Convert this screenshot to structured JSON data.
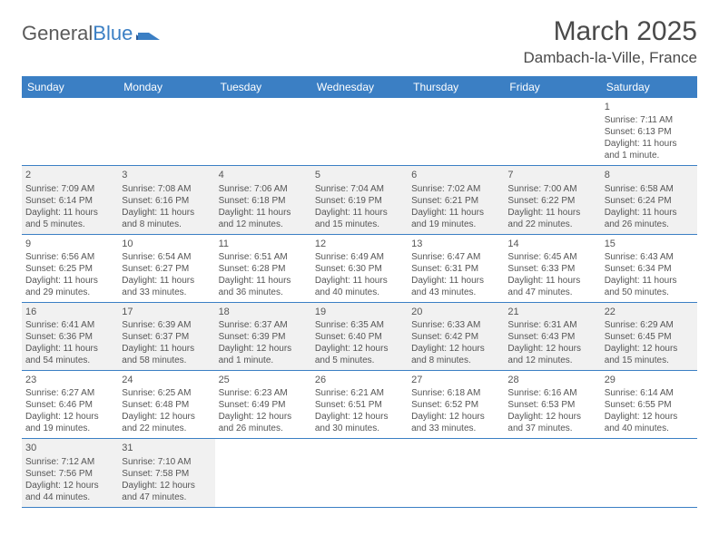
{
  "logo": {
    "text1": "General",
    "text2": "Blue"
  },
  "title": "March 2025",
  "location": "Dambach-la-Ville, France",
  "colors": {
    "header_bg": "#3b7fc4",
    "header_text": "#ffffff",
    "cell_text": "#555555",
    "shaded_bg": "#f1f1f1",
    "page_bg": "#ffffff",
    "border": "#3b7fc4"
  },
  "day_headers": [
    "Sunday",
    "Monday",
    "Tuesday",
    "Wednesday",
    "Thursday",
    "Friday",
    "Saturday"
  ],
  "weeks": [
    [
      {
        "num": "",
        "sunrise": "",
        "sunset": "",
        "daylight": "",
        "shaded": false
      },
      {
        "num": "",
        "sunrise": "",
        "sunset": "",
        "daylight": "",
        "shaded": false
      },
      {
        "num": "",
        "sunrise": "",
        "sunset": "",
        "daylight": "",
        "shaded": false
      },
      {
        "num": "",
        "sunrise": "",
        "sunset": "",
        "daylight": "",
        "shaded": false
      },
      {
        "num": "",
        "sunrise": "",
        "sunset": "",
        "daylight": "",
        "shaded": false
      },
      {
        "num": "",
        "sunrise": "",
        "sunset": "",
        "daylight": "",
        "shaded": false
      },
      {
        "num": "1",
        "sunrise": "Sunrise: 7:11 AM",
        "sunset": "Sunset: 6:13 PM",
        "daylight": "Daylight: 11 hours and 1 minute.",
        "shaded": false
      }
    ],
    [
      {
        "num": "2",
        "sunrise": "Sunrise: 7:09 AM",
        "sunset": "Sunset: 6:14 PM",
        "daylight": "Daylight: 11 hours and 5 minutes.",
        "shaded": true
      },
      {
        "num": "3",
        "sunrise": "Sunrise: 7:08 AM",
        "sunset": "Sunset: 6:16 PM",
        "daylight": "Daylight: 11 hours and 8 minutes.",
        "shaded": true
      },
      {
        "num": "4",
        "sunrise": "Sunrise: 7:06 AM",
        "sunset": "Sunset: 6:18 PM",
        "daylight": "Daylight: 11 hours and 12 minutes.",
        "shaded": true
      },
      {
        "num": "5",
        "sunrise": "Sunrise: 7:04 AM",
        "sunset": "Sunset: 6:19 PM",
        "daylight": "Daylight: 11 hours and 15 minutes.",
        "shaded": true
      },
      {
        "num": "6",
        "sunrise": "Sunrise: 7:02 AM",
        "sunset": "Sunset: 6:21 PM",
        "daylight": "Daylight: 11 hours and 19 minutes.",
        "shaded": true
      },
      {
        "num": "7",
        "sunrise": "Sunrise: 7:00 AM",
        "sunset": "Sunset: 6:22 PM",
        "daylight": "Daylight: 11 hours and 22 minutes.",
        "shaded": true
      },
      {
        "num": "8",
        "sunrise": "Sunrise: 6:58 AM",
        "sunset": "Sunset: 6:24 PM",
        "daylight": "Daylight: 11 hours and 26 minutes.",
        "shaded": true
      }
    ],
    [
      {
        "num": "9",
        "sunrise": "Sunrise: 6:56 AM",
        "sunset": "Sunset: 6:25 PM",
        "daylight": "Daylight: 11 hours and 29 minutes.",
        "shaded": false
      },
      {
        "num": "10",
        "sunrise": "Sunrise: 6:54 AM",
        "sunset": "Sunset: 6:27 PM",
        "daylight": "Daylight: 11 hours and 33 minutes.",
        "shaded": false
      },
      {
        "num": "11",
        "sunrise": "Sunrise: 6:51 AM",
        "sunset": "Sunset: 6:28 PM",
        "daylight": "Daylight: 11 hours and 36 minutes.",
        "shaded": false
      },
      {
        "num": "12",
        "sunrise": "Sunrise: 6:49 AM",
        "sunset": "Sunset: 6:30 PM",
        "daylight": "Daylight: 11 hours and 40 minutes.",
        "shaded": false
      },
      {
        "num": "13",
        "sunrise": "Sunrise: 6:47 AM",
        "sunset": "Sunset: 6:31 PM",
        "daylight": "Daylight: 11 hours and 43 minutes.",
        "shaded": false
      },
      {
        "num": "14",
        "sunrise": "Sunrise: 6:45 AM",
        "sunset": "Sunset: 6:33 PM",
        "daylight": "Daylight: 11 hours and 47 minutes.",
        "shaded": false
      },
      {
        "num": "15",
        "sunrise": "Sunrise: 6:43 AM",
        "sunset": "Sunset: 6:34 PM",
        "daylight": "Daylight: 11 hours and 50 minutes.",
        "shaded": false
      }
    ],
    [
      {
        "num": "16",
        "sunrise": "Sunrise: 6:41 AM",
        "sunset": "Sunset: 6:36 PM",
        "daylight": "Daylight: 11 hours and 54 minutes.",
        "shaded": true
      },
      {
        "num": "17",
        "sunrise": "Sunrise: 6:39 AM",
        "sunset": "Sunset: 6:37 PM",
        "daylight": "Daylight: 11 hours and 58 minutes.",
        "shaded": true
      },
      {
        "num": "18",
        "sunrise": "Sunrise: 6:37 AM",
        "sunset": "Sunset: 6:39 PM",
        "daylight": "Daylight: 12 hours and 1 minute.",
        "shaded": true
      },
      {
        "num": "19",
        "sunrise": "Sunrise: 6:35 AM",
        "sunset": "Sunset: 6:40 PM",
        "daylight": "Daylight: 12 hours and 5 minutes.",
        "shaded": true
      },
      {
        "num": "20",
        "sunrise": "Sunrise: 6:33 AM",
        "sunset": "Sunset: 6:42 PM",
        "daylight": "Daylight: 12 hours and 8 minutes.",
        "shaded": true
      },
      {
        "num": "21",
        "sunrise": "Sunrise: 6:31 AM",
        "sunset": "Sunset: 6:43 PM",
        "daylight": "Daylight: 12 hours and 12 minutes.",
        "shaded": true
      },
      {
        "num": "22",
        "sunrise": "Sunrise: 6:29 AM",
        "sunset": "Sunset: 6:45 PM",
        "daylight": "Daylight: 12 hours and 15 minutes.",
        "shaded": true
      }
    ],
    [
      {
        "num": "23",
        "sunrise": "Sunrise: 6:27 AM",
        "sunset": "Sunset: 6:46 PM",
        "daylight": "Daylight: 12 hours and 19 minutes.",
        "shaded": false
      },
      {
        "num": "24",
        "sunrise": "Sunrise: 6:25 AM",
        "sunset": "Sunset: 6:48 PM",
        "daylight": "Daylight: 12 hours and 22 minutes.",
        "shaded": false
      },
      {
        "num": "25",
        "sunrise": "Sunrise: 6:23 AM",
        "sunset": "Sunset: 6:49 PM",
        "daylight": "Daylight: 12 hours and 26 minutes.",
        "shaded": false
      },
      {
        "num": "26",
        "sunrise": "Sunrise: 6:21 AM",
        "sunset": "Sunset: 6:51 PM",
        "daylight": "Daylight: 12 hours and 30 minutes.",
        "shaded": false
      },
      {
        "num": "27",
        "sunrise": "Sunrise: 6:18 AM",
        "sunset": "Sunset: 6:52 PM",
        "daylight": "Daylight: 12 hours and 33 minutes.",
        "shaded": false
      },
      {
        "num": "28",
        "sunrise": "Sunrise: 6:16 AM",
        "sunset": "Sunset: 6:53 PM",
        "daylight": "Daylight: 12 hours and 37 minutes.",
        "shaded": false
      },
      {
        "num": "29",
        "sunrise": "Sunrise: 6:14 AM",
        "sunset": "Sunset: 6:55 PM",
        "daylight": "Daylight: 12 hours and 40 minutes.",
        "shaded": false
      }
    ],
    [
      {
        "num": "30",
        "sunrise": "Sunrise: 7:12 AM",
        "sunset": "Sunset: 7:56 PM",
        "daylight": "Daylight: 12 hours and 44 minutes.",
        "shaded": true
      },
      {
        "num": "31",
        "sunrise": "Sunrise: 7:10 AM",
        "sunset": "Sunset: 7:58 PM",
        "daylight": "Daylight: 12 hours and 47 minutes.",
        "shaded": true
      },
      {
        "num": "",
        "sunrise": "",
        "sunset": "",
        "daylight": "",
        "shaded": false
      },
      {
        "num": "",
        "sunrise": "",
        "sunset": "",
        "daylight": "",
        "shaded": false
      },
      {
        "num": "",
        "sunrise": "",
        "sunset": "",
        "daylight": "",
        "shaded": false
      },
      {
        "num": "",
        "sunrise": "",
        "sunset": "",
        "daylight": "",
        "shaded": false
      },
      {
        "num": "",
        "sunrise": "",
        "sunset": "",
        "daylight": "",
        "shaded": false
      }
    ]
  ]
}
